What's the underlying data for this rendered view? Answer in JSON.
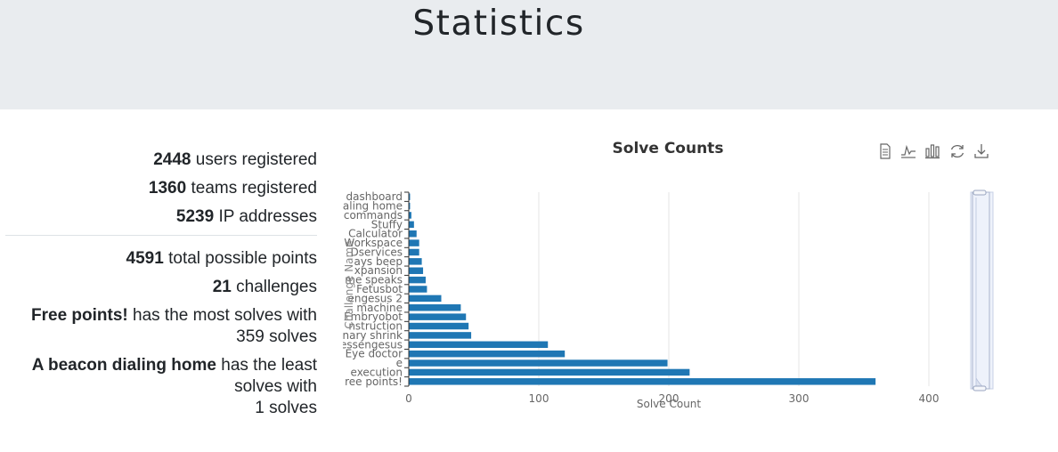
{
  "page": {
    "title": "Statistics"
  },
  "stats": {
    "users_count": "2448",
    "users_label": " users registered",
    "teams_count": "1360",
    "teams_label": " teams registered",
    "ip_count": "5239",
    "ip_label": " IP addresses",
    "points_count": "4591",
    "points_label": " total possible points",
    "challenges_count": "21",
    "challenges_label": " challenges",
    "most_name": "Free points!",
    "most_text": " has the most solves with",
    "most_solves": "359 solves",
    "least_name": "A beacon dialing home",
    "least_text": " has the least",
    "least_line2": "solves with",
    "least_solves": "1 solves"
  },
  "toolbox": [
    "data-view-icon",
    "line-chart-icon",
    "bar-chart-icon",
    "restore-icon",
    "save-image-icon"
  ],
  "chart_data": {
    "type": "bar",
    "orientation": "horizontal",
    "title": "Solve Counts",
    "xlabel": "Solve Count",
    "ylabel": "Challenge Name",
    "xlim": [
      0,
      400
    ],
    "xticks": [
      "0",
      "100",
      "200",
      "300",
      "400"
    ],
    "color": "#1f77b4",
    "categories": [
      "dashboard",
      "aling home",
      "commands",
      "Stuffy",
      "Calculator",
      "Workspace",
      "Dservices",
      "ays beep",
      "xpansion",
      "me speaks",
      "Fetusbot",
      "engesus 2",
      "machine",
      "Embryobot",
      "nstruction",
      "nary shrink",
      "essengesus",
      "Eye doctor",
      "e",
      "execution",
      "ree points!"
    ],
    "values": [
      1,
      1,
      2,
      4,
      6,
      8,
      8,
      10,
      11,
      13,
      14,
      25,
      40,
      44,
      46,
      48,
      107,
      120,
      199,
      216,
      359
    ]
  }
}
